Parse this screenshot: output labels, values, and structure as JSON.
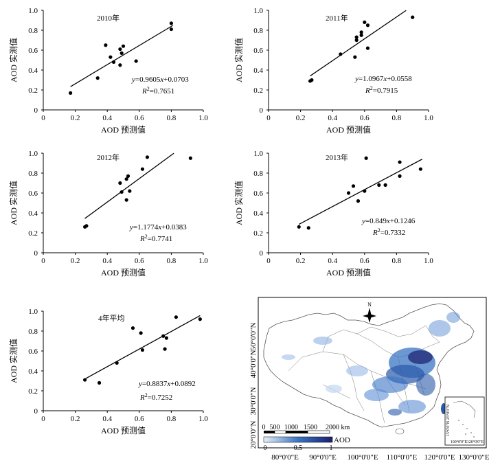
{
  "chart_data": [
    {
      "type": "scatter",
      "title": "2010年",
      "xlabel": "AOD 预测值",
      "ylabel": "AOD 实测值",
      "xlim": [
        0,
        1.0
      ],
      "ylim": [
        0,
        1.0
      ],
      "xticks": [
        "0",
        "0.2",
        "0.4",
        "0.6",
        "0.8",
        "1.0"
      ],
      "yticks": [
        "0",
        "0.2",
        "0.4",
        "0.6",
        "0.8",
        "1.0"
      ],
      "points": [
        [
          0.17,
          0.17
        ],
        [
          0.34,
          0.32
        ],
        [
          0.39,
          0.65
        ],
        [
          0.42,
          0.53
        ],
        [
          0.44,
          0.48
        ],
        [
          0.48,
          0.45
        ],
        [
          0.48,
          0.61
        ],
        [
          0.49,
          0.57
        ],
        [
          0.5,
          0.64
        ],
        [
          0.58,
          0.49
        ],
        [
          0.8,
          0.81
        ],
        [
          0.8,
          0.87
        ]
      ],
      "fit": {
        "slope": 0.9605,
        "intercept": 0.0703,
        "x_range": [
          0.17,
          0.81
        ]
      },
      "equation_parts": [
        "y",
        "=0.9605",
        "x",
        "+0.0703"
      ],
      "r2_prefix": "R",
      "r2_sup": "2",
      "r2_value": "=0.7651"
    },
    {
      "type": "scatter",
      "title": "2011年",
      "xlabel": "AOD 预测值",
      "ylabel": "AOD 实测值",
      "xlim": [
        0,
        1.0
      ],
      "ylim": [
        0,
        1.0
      ],
      "xticks": [
        "0",
        "0.2",
        "0.4",
        "0.6",
        "0.8",
        "1.0"
      ],
      "yticks": [
        "0",
        "0.2",
        "0.4",
        "0.6",
        "0.8",
        "1.0"
      ],
      "points": [
        [
          0.26,
          0.29
        ],
        [
          0.27,
          0.3
        ],
        [
          0.45,
          0.56
        ],
        [
          0.54,
          0.53
        ],
        [
          0.55,
          0.7
        ],
        [
          0.55,
          0.73
        ],
        [
          0.58,
          0.75
        ],
        [
          0.58,
          0.78
        ],
        [
          0.6,
          0.88
        ],
        [
          0.62,
          0.85
        ],
        [
          0.62,
          0.62
        ],
        [
          0.9,
          0.93
        ]
      ],
      "fit": {
        "slope": 1.0967,
        "intercept": 0.0558,
        "x_range": [
          0.26,
          0.86
        ]
      },
      "equation_parts": [
        "y",
        "=1.0967",
        "x",
        "+0.0558"
      ],
      "r2_prefix": "R",
      "r2_sup": "2",
      "r2_value": "=0.7915"
    },
    {
      "type": "scatter",
      "title": "2012年",
      "xlabel": "AOD 预测值",
      "ylabel": "AOD 实测值",
      "xlim": [
        0,
        1.0
      ],
      "ylim": [
        0,
        1.0
      ],
      "xticks": [
        "0",
        "0.2",
        "0.4",
        "0.6",
        "0.8",
        "1.0"
      ],
      "yticks": [
        "0",
        "0.2",
        "0.4",
        "0.6",
        "0.8",
        "1.0"
      ],
      "points": [
        [
          0.26,
          0.26
        ],
        [
          0.27,
          0.27
        ],
        [
          0.48,
          0.7
        ],
        [
          0.49,
          0.61
        ],
        [
          0.52,
          0.53
        ],
        [
          0.52,
          0.74
        ],
        [
          0.53,
          0.77
        ],
        [
          0.54,
          0.62
        ],
        [
          0.62,
          0.84
        ],
        [
          0.65,
          0.96
        ],
        [
          0.92,
          0.95
        ]
      ],
      "fit": {
        "slope": 1.1774,
        "intercept": 0.0383,
        "x_range": [
          0.26,
          0.816
        ]
      },
      "equation_parts": [
        "y",
        "=1.1774",
        "x",
        "+0.0383"
      ],
      "r2_prefix": "R",
      "r2_sup": "2",
      "r2_value": "=0.7741"
    },
    {
      "type": "scatter",
      "title": "2013年",
      "xlabel": "AOD 预测值",
      "ylabel": "AOD 实测值",
      "xlim": [
        0,
        1.0
      ],
      "ylim": [
        0,
        1.0
      ],
      "xticks": [
        "0",
        "0.2",
        "0.4",
        "0.6",
        "0.8",
        "1.0"
      ],
      "yticks": [
        "0",
        "0.2",
        "0.4",
        "0.6",
        "0.8",
        "1.0"
      ],
      "points": [
        [
          0.19,
          0.26
        ],
        [
          0.25,
          0.25
        ],
        [
          0.5,
          0.6
        ],
        [
          0.53,
          0.67
        ],
        [
          0.56,
          0.52
        ],
        [
          0.6,
          0.62
        ],
        [
          0.61,
          0.95
        ],
        [
          0.69,
          0.68
        ],
        [
          0.73,
          0.68
        ],
        [
          0.82,
          0.77
        ],
        [
          0.82,
          0.91
        ],
        [
          0.95,
          0.84
        ]
      ],
      "fit": {
        "slope": 0.849,
        "intercept": 0.1246,
        "x_range": [
          0.19,
          0.96
        ]
      },
      "equation_parts": [
        "y",
        "=0.849",
        "x",
        "+0.1246"
      ],
      "r2_prefix": "R",
      "r2_sup": "2",
      "r2_value": "=0.7332"
    },
    {
      "type": "scatter",
      "title": "4年平均",
      "xlabel": "AOD 预测值",
      "ylabel": "AOD 实测值",
      "xlim": [
        0,
        1.0
      ],
      "ylim": [
        0,
        1.0
      ],
      "xticks": [
        "0",
        "0.2",
        "0.4",
        "0.6",
        "0.8",
        "1.0"
      ],
      "yticks": [
        "0",
        "0.2",
        "0.4",
        "0.6",
        "0.8",
        "1.0"
      ],
      "points": [
        [
          0.26,
          0.31
        ],
        [
          0.35,
          0.28
        ],
        [
          0.46,
          0.48
        ],
        [
          0.56,
          0.83
        ],
        [
          0.61,
          0.78
        ],
        [
          0.62,
          0.61
        ],
        [
          0.75,
          0.75
        ],
        [
          0.76,
          0.62
        ],
        [
          0.77,
          0.73
        ],
        [
          0.83,
          0.94
        ],
        [
          0.98,
          0.92
        ]
      ],
      "fit": {
        "slope": 0.8837,
        "intercept": 0.0892,
        "x_range": [
          0.26,
          0.98
        ]
      },
      "equation_parts": [
        "y",
        "=0.8837",
        "x",
        "+0.0892"
      ],
      "r2_prefix": "R",
      "r2_sup": "2",
      "r2_value": "=0.7252"
    }
  ],
  "map": {
    "lat_labels": [
      "50°0'0\"N",
      "40°0'0\"N",
      "30°0'0\"N",
      "20°0'0\"N"
    ],
    "lon_labels": [
      "80°0'0\"E",
      "90°0'0\"E",
      "100°0'0\"E",
      "110°0'0\"E",
      "120°0'0\"E",
      "130°0'0\"E"
    ],
    "north_label": "N",
    "scale_bar_labels": [
      "0",
      "500",
      "1000",
      "1500",
      "2000 km"
    ],
    "legend_title": "AOD",
    "legend_ticks": [
      "0",
      "0.5",
      "1"
    ],
    "inset_lat_labels": [
      "25°0'0\"N",
      "15°0'0\"N"
    ],
    "inset_lon_labels": [
      "100°0'0\"E",
      "120°0'0\"E"
    ],
    "colors": {
      "low": "#e8f0fa",
      "mid": "#3a75c4",
      "high": "#1a1f6e"
    }
  }
}
